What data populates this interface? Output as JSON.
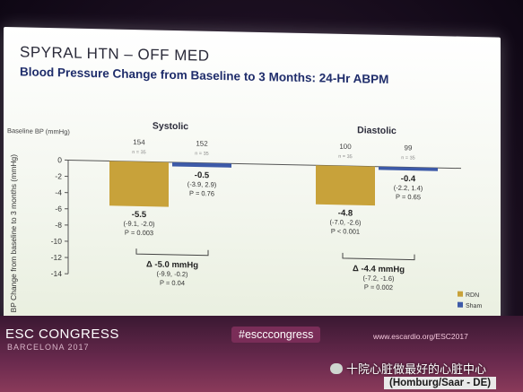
{
  "slide": {
    "title": "SPYRAL HTN – OFF MED",
    "subtitle": "Blood Pressure Change from Baseline to 3 Months: 24-Hr ABPM"
  },
  "chart_data": {
    "type": "bar",
    "ylabel": "BP Change from baseline to 3 months (mmHg)",
    "ylim": [
      -14,
      0
    ],
    "yticks": [
      0,
      -2,
      -4,
      -6,
      -8,
      -10,
      -12,
      -14
    ],
    "baseline_label": "Baseline BP (mmHg)",
    "legend": [
      {
        "name": "RDN",
        "color": "#c8a23a"
      },
      {
        "name": "Sham",
        "color": "#3d5aa8"
      }
    ],
    "groups": [
      {
        "name": "Systolic",
        "bars": [
          {
            "series": "RDN",
            "value": -5.5,
            "baseline": "154",
            "n": "n = 35",
            "value_label": "-5.5",
            "ci": "(-9.1, -2.0)",
            "p": "P = 0.003"
          },
          {
            "series": "Sham",
            "value": -0.5,
            "baseline": "152",
            "n": "n = 35",
            "value_label": "-0.5",
            "ci": "(-3.9, 2.9)",
            "p": "P = 0.76"
          }
        ],
        "delta": {
          "label": "Δ -5.0 mmHg",
          "ci": "(-9.9, -0.2)",
          "p": "P = 0.04"
        }
      },
      {
        "name": "Diastolic",
        "bars": [
          {
            "series": "RDN",
            "value": -4.8,
            "baseline": "100",
            "n": "n = 35",
            "value_label": "-4.8",
            "ci": "(-7.0, -2.6)",
            "p": "P < 0.001"
          },
          {
            "series": "Sham",
            "value": -0.4,
            "baseline": "99",
            "n": "n = 35",
            "value_label": "-0.4",
            "ci": "(-2.2, 1.4)",
            "p": "P = 0.65"
          }
        ],
        "delta": {
          "label": "Δ -4.4 mmHg",
          "ci": "(-7.2, -1.6)",
          "p": "P = 0.002"
        }
      }
    ]
  },
  "footer": {
    "brand": "ESC CONGRESS",
    "city": "BARCELONA 2017",
    "hashtag": "#escccongress",
    "url": "www.escardio.org/ESC2017",
    "watermark": "十院心脏做最好的心脏中心",
    "location": "(Homburg/Saar - DE)"
  }
}
